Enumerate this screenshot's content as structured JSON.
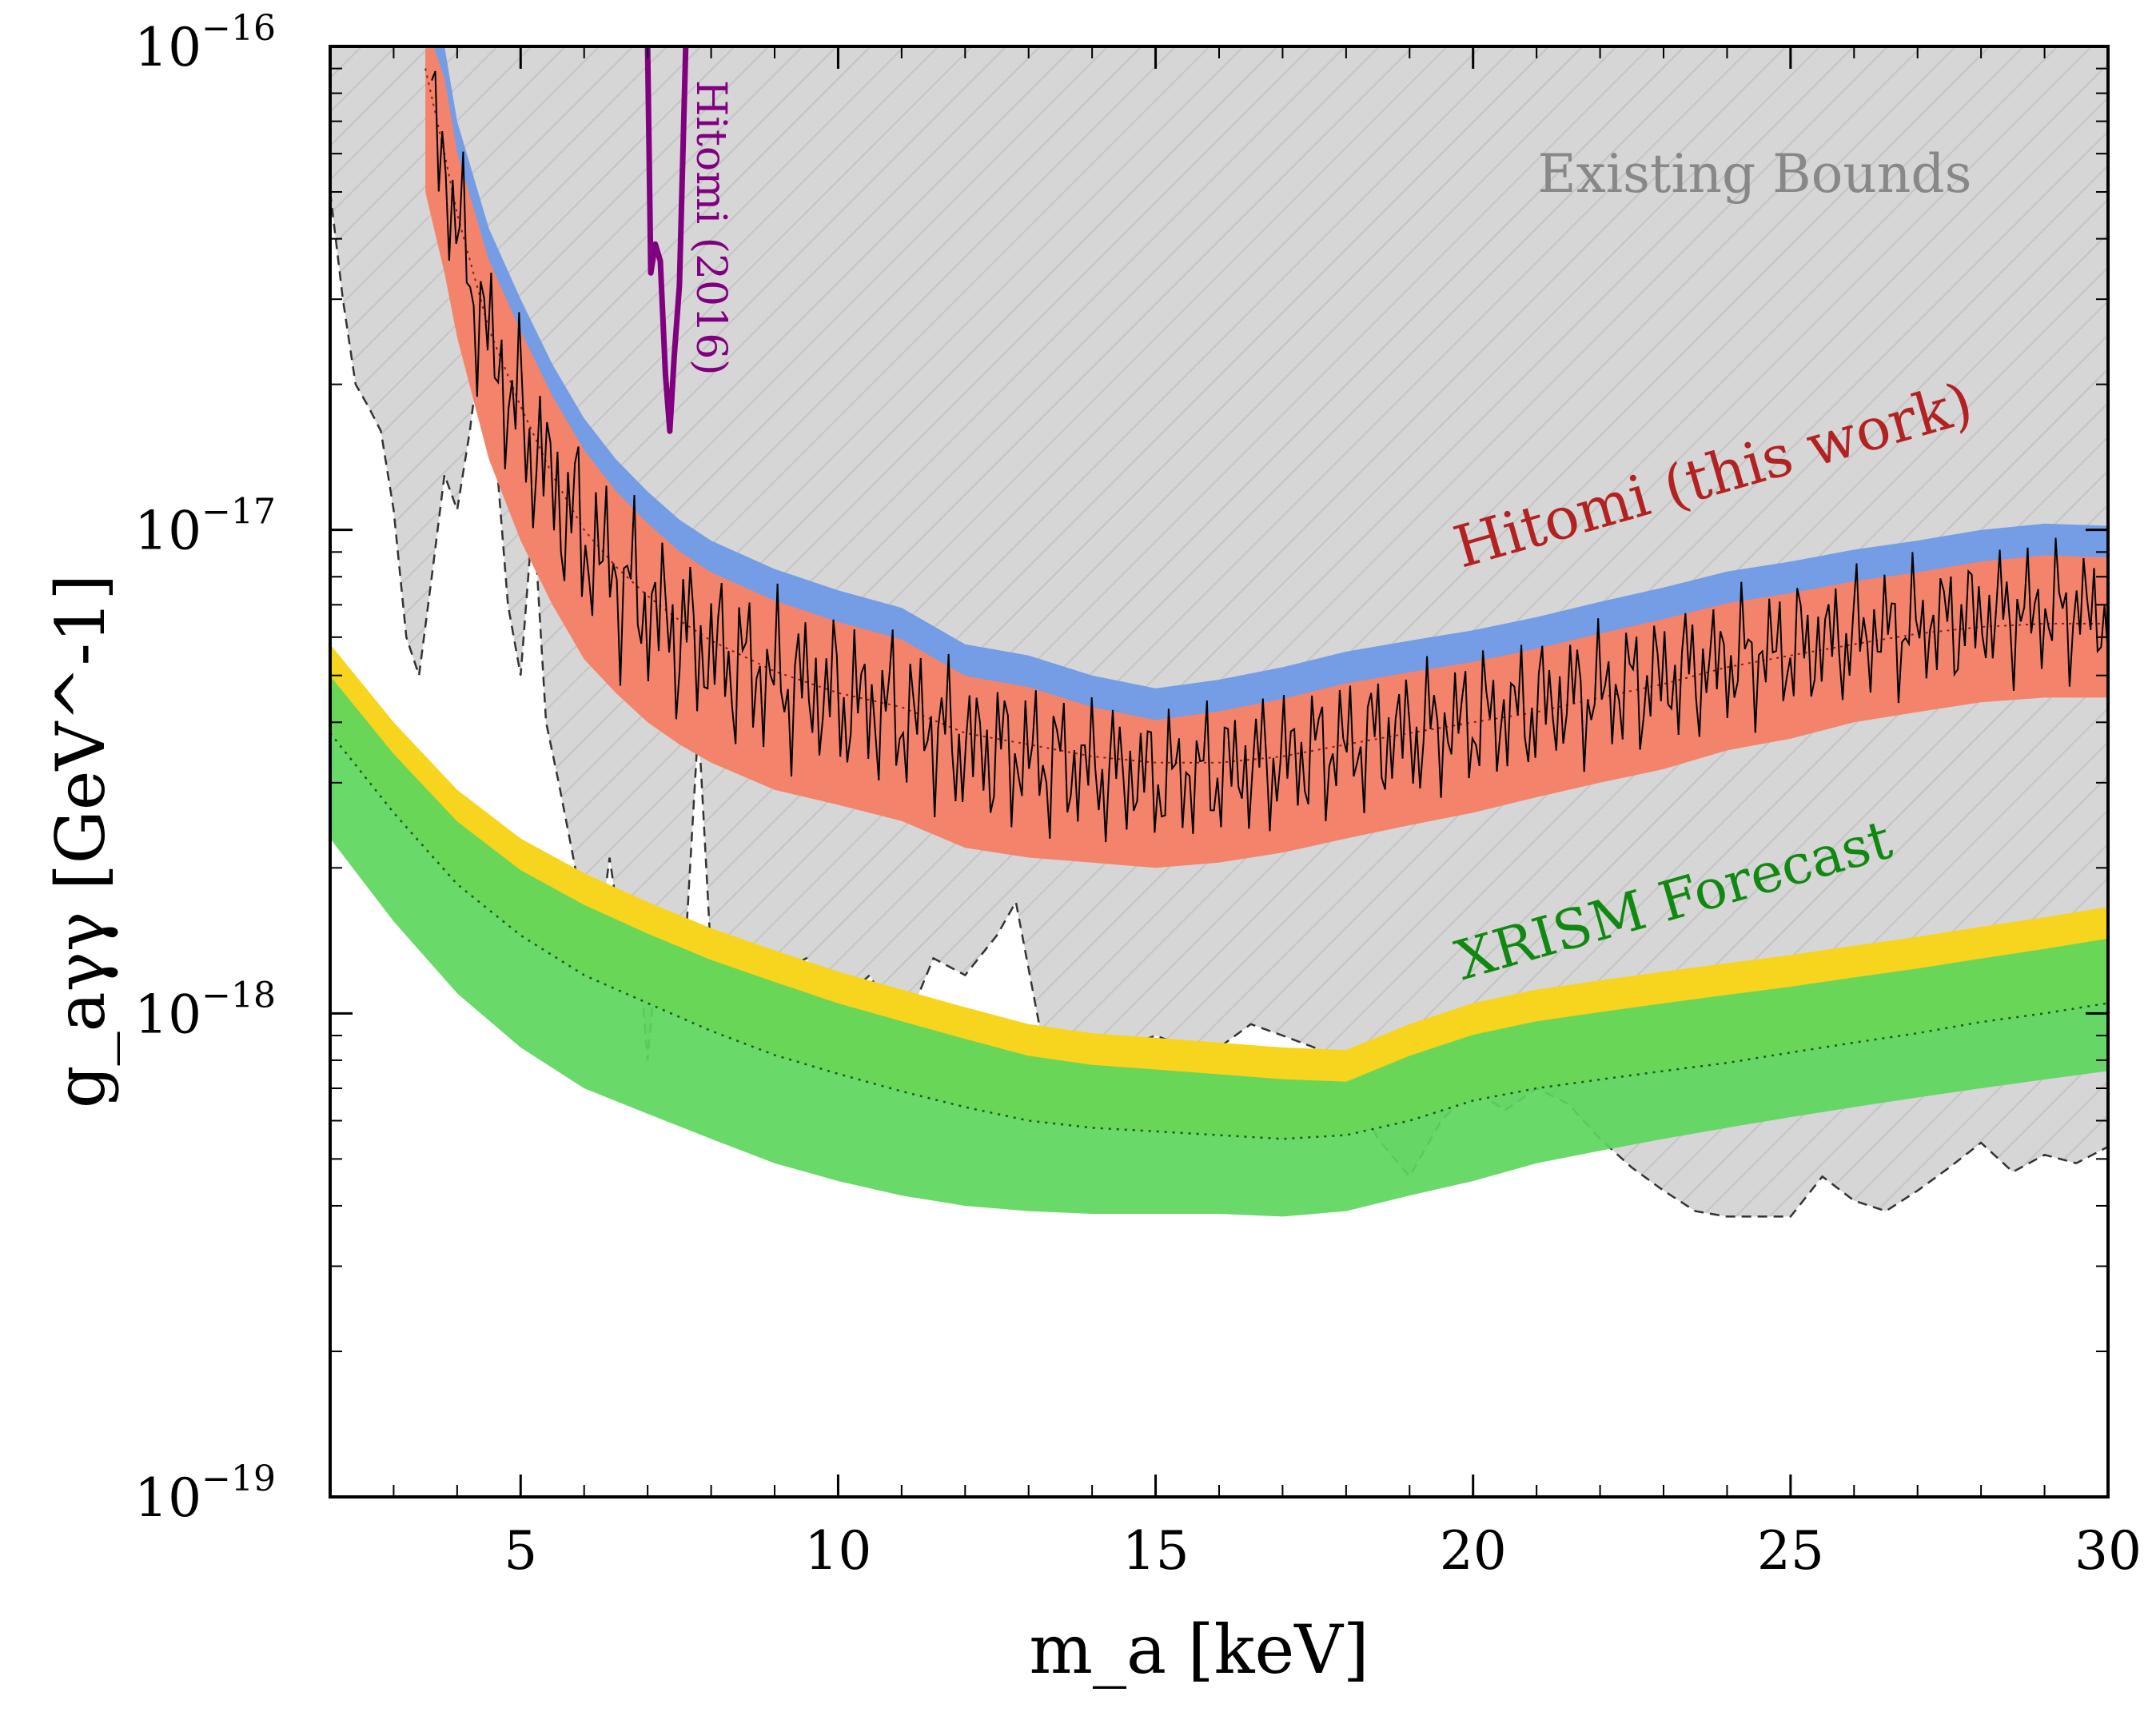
{
  "chart_data": {
    "type": "line",
    "title": "",
    "xlabel": "m_a [keV]",
    "ylabel": "g_aγγ [GeV^-1]",
    "xaxis": {
      "scale": "linear",
      "xlim": [
        2,
        30
      ],
      "ticks": [
        5,
        10,
        15,
        20,
        25,
        30
      ],
      "tick_labels": [
        "5",
        "10",
        "15",
        "20",
        "25",
        "30"
      ]
    },
    "yaxis": {
      "scale": "log",
      "ylim": [
        1e-19,
        1e-16
      ],
      "ticks": [
        1e-19,
        1e-18,
        1e-17,
        1e-16
      ],
      "tick_labels": [
        [
          "10",
          "−19"
        ],
        [
          "10",
          "−18"
        ],
        [
          "10",
          "−17"
        ],
        [
          "10",
          "−16"
        ]
      ]
    },
    "annotations": {
      "existing": "Existing Bounds",
      "hitomi_work": "Hitomi (this work)",
      "xrism": "XRISM Forecast",
      "hitomi_2016": "Hitomi (2016)"
    },
    "colors": {
      "existing_fill": "#d6d6d6",
      "hatch": "#c4c4c4",
      "hitomi_band_upper": "#6f9ae6",
      "hitomi_band_main": "#f4836b",
      "xrism_band_upper": "#f7d41e",
      "xrism_band_main": "#5cd65c",
      "hitomi_2016_line": "#800080",
      "hitomi_label": "#b22222",
      "xrism_label": "#118811",
      "existing_label": "#888888"
    },
    "series": [
      {
        "name": "Existing Bounds",
        "style": "dashed boundary, grey hatched fill above",
        "x": [
          2.0,
          2.2,
          2.4,
          2.6,
          2.8,
          3.0,
          3.2,
          3.4,
          3.6,
          3.8,
          4.0,
          4.2,
          4.4,
          4.6,
          4.8,
          5.0,
          5.2,
          5.4,
          5.6,
          5.8,
          6.0,
          6.2,
          6.4,
          6.6,
          6.8,
          7.0,
          7.2,
          7.4,
          7.6,
          7.8,
          8.0,
          8.5,
          9.0,
          9.5,
          10.0,
          10.5,
          11.0,
          11.5,
          12.0,
          12.5,
          12.8,
          13.2,
          13.6,
          14.0,
          14.5,
          15.0,
          15.5,
          16.0,
          16.5,
          17.0,
          17.5,
          18.0,
          18.5,
          19.0,
          19.5,
          20.0,
          20.5,
          21.0,
          21.5,
          22.0,
          22.5,
          23.0,
          23.5,
          24.0,
          24.5,
          25.0,
          25.5,
          26.0,
          26.5,
          27.0,
          27.5,
          28.0,
          28.5,
          29.0,
          29.5,
          30.0
        ],
        "y": [
          5e-17,
          3e-17,
          2e-17,
          1.8e-17,
          1.6e-17,
          1.1e-17,
          6e-18,
          5e-18,
          8e-18,
          1.3e-17,
          1.1e-17,
          1.6e-17,
          2.6e-17,
          1.5e-17,
          7e-18,
          5e-18,
          1.1e-17,
          4e-18,
          3e-18,
          2.2e-18,
          1.6e-18,
          1.3e-18,
          2.1e-18,
          1.4e-18,
          1.7e-18,
          8e-19,
          1.6e-18,
          1.1e-18,
          1.4e-18,
          4e-18,
          1.3e-18,
          1.4e-18,
          1.2e-18,
          1.3e-18,
          1.05e-18,
          1.2e-18,
          9e-19,
          1.3e-18,
          1.2e-18,
          1.45e-18,
          1.7e-18,
          9e-19,
          7e-19,
          8e-19,
          8.5e-19,
          9e-19,
          8.5e-19,
          8.5e-19,
          9.5e-19,
          9e-19,
          8.5e-19,
          7.5e-19,
          5.5e-19,
          4.6e-19,
          6e-19,
          7e-19,
          6.3e-19,
          7e-19,
          6.5e-19,
          5.5e-19,
          4.8e-19,
          4.3e-19,
          3.9e-19,
          3.8e-19,
          3.8e-19,
          3.8e-19,
          4.6e-19,
          4.1e-19,
          3.9e-19,
          4.3e-19,
          4.8e-19,
          5.4e-19,
          4.7e-19,
          5.1e-19,
          4.9e-19,
          5.3e-19
        ]
      },
      {
        "name": "Hitomi (this work) band",
        "x": [
          3.5,
          3.8,
          4.0,
          4.5,
          5.0,
          5.5,
          6.0,
          6.5,
          7.0,
          7.5,
          8.0,
          9.0,
          10.0,
          11.0,
          12.0,
          13.0,
          14.0,
          15.0,
          16.0,
          17.0,
          18.0,
          19.0,
          20.0,
          21.0,
          22.0,
          23.0,
          24.0,
          25.0,
          26.0,
          27.0,
          28.0,
          29.0,
          30.0
        ],
        "upper": [
          1.3e-16,
          1e-16,
          7e-17,
          4.2e-17,
          3e-17,
          2.2e-17,
          1.7e-17,
          1.4e-17,
          1.2e-17,
          1.05e-17,
          9.5e-18,
          8.3e-18,
          7.5e-18,
          6.9e-18,
          5.8e-18,
          5.5e-18,
          5e-18,
          4.7e-18,
          4.9e-18,
          5.2e-18,
          5.6e-18,
          5.9e-18,
          6.2e-18,
          6.6e-18,
          7.1e-18,
          7.6e-18,
          8.2e-18,
          8.6e-18,
          9.1e-18,
          9.5e-18,
          1e-17,
          1.03e-17,
          1.02e-17
        ],
        "median": [
          9e-17,
          6e-17,
          4.5e-17,
          2.6e-17,
          1.8e-17,
          1.3e-17,
          1e-17,
          8.4e-18,
          7.3e-18,
          6.5e-18,
          5.9e-18,
          5.1e-18,
          4.6e-18,
          4.3e-18,
          3.8e-18,
          3.6e-18,
          3.4e-18,
          3.3e-18,
          3.3e-18,
          3.4e-18,
          3.6e-18,
          3.8e-18,
          4e-18,
          4.2e-18,
          4.5e-18,
          4.8e-18,
          5.2e-18,
          5.5e-18,
          5.8e-18,
          6.1e-18,
          6.3e-18,
          6.4e-18,
          6.4e-18
        ],
        "lower": [
          5e-17,
          3.4e-17,
          2.5e-17,
          1.4e-17,
          9.5e-18,
          7e-18,
          5.4e-18,
          4.6e-18,
          4e-18,
          3.6e-18,
          3.3e-18,
          2.9e-18,
          2.7e-18,
          2.5e-18,
          2.2e-18,
          2.1e-18,
          2.05e-18,
          2e-18,
          2.05e-18,
          2.15e-18,
          2.3e-18,
          2.45e-18,
          2.6e-18,
          2.8e-18,
          3e-18,
          3.2e-18,
          3.5e-18,
          3.7e-18,
          4e-18,
          4.2e-18,
          4.4e-18,
          4.5e-18,
          4.5e-18
        ]
      },
      {
        "name": "XRISM Forecast band",
        "x": [
          2,
          3,
          4,
          5,
          6,
          7,
          8,
          9,
          10,
          11,
          12,
          13,
          14,
          15,
          16,
          17,
          18,
          19,
          20,
          21,
          22,
          23,
          24,
          25,
          26,
          27,
          28,
          29,
          30
        ],
        "upper": [
          5.8e-18,
          4e-18,
          2.9e-18,
          2.3e-18,
          1.95e-18,
          1.7e-18,
          1.5e-18,
          1.35e-18,
          1.22e-18,
          1.12e-18,
          1.03e-18,
          9.5e-19,
          9.1e-19,
          8.9e-19,
          8.7e-19,
          8.5e-19,
          8.4e-19,
          9.5e-19,
          1.05e-18,
          1.12e-18,
          1.17e-18,
          1.22e-18,
          1.27e-18,
          1.32e-18,
          1.38e-18,
          1.44e-18,
          1.51e-18,
          1.58e-18,
          1.66e-18
        ],
        "median": [
          3.8e-18,
          2.6e-18,
          1.85e-18,
          1.45e-18,
          1.2e-18,
          1.05e-18,
          9.2e-19,
          8.2e-19,
          7.5e-19,
          6.9e-19,
          6.4e-19,
          6e-19,
          5.8e-19,
          5.7e-19,
          5.6e-19,
          5.5e-19,
          5.6e-19,
          6e-19,
          6.6e-19,
          7e-19,
          7.3e-19,
          7.6e-19,
          7.9e-19,
          8.3e-19,
          8.7e-19,
          9.1e-19,
          9.6e-19,
          1e-18,
          1.05e-18
        ],
        "lower": [
          2.3e-18,
          1.55e-18,
          1.1e-18,
          8.5e-19,
          7e-19,
          6.2e-19,
          5.5e-19,
          4.9e-19,
          4.5e-19,
          4.2e-19,
          4e-19,
          3.9e-19,
          3.85e-19,
          3.85e-19,
          3.85e-19,
          3.8e-19,
          3.9e-19,
          4.2e-19,
          4.5e-19,
          4.9e-19,
          5.2e-19,
          5.5e-19,
          5.8e-19,
          6.1e-19,
          6.4e-19,
          6.7e-19,
          7e-19,
          7.3e-19,
          7.6e-19
        ]
      },
      {
        "name": "Hitomi (2016)",
        "x": [
          7.0,
          7.05,
          7.12,
          7.2,
          7.28,
          7.35,
          7.42,
          7.5,
          7.6
        ],
        "y": [
          1e-16,
          3.4e-17,
          3.9e-17,
          3.6e-17,
          2.1e-17,
          1.6e-17,
          2.3e-17,
          3.2e-17,
          1e-16
        ]
      }
    ]
  }
}
